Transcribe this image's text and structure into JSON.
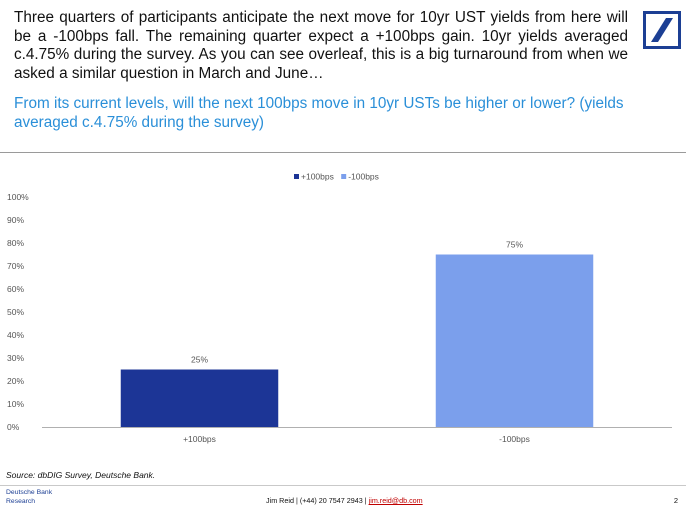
{
  "header": {
    "intro": "Three quarters of participants anticipate the next move for 10yr UST yields from here will be a -100bps fall. The remaining quarter expect a +100bps gain. 10yr yields averaged c.4.75% during the survey. As you can see overleaf, this is a big turnaround from when we asked a similar question in March and June…",
    "question": "From its current levels, will the next 100bps move in 10yr USTs be higher or lower? (yields averaged c.4.75% during the survey)"
  },
  "chart_data": {
    "type": "bar",
    "categories": [
      "+100bps",
      "-100bps"
    ],
    "values": [
      25,
      75
    ],
    "data_labels": [
      "25%",
      "75%"
    ],
    "colors": [
      "#1c3596",
      "#7b9fec"
    ],
    "legend": {
      "position": "top-center",
      "entries": [
        {
          "label": "+100bps",
          "color": "#1c3596"
        },
        {
          "label": "-100bps",
          "color": "#7b9fec"
        }
      ]
    },
    "ylim": [
      0,
      100
    ],
    "yticks": [
      "0%",
      "10%",
      "20%",
      "30%",
      "40%",
      "50%",
      "60%",
      "70%",
      "80%",
      "90%",
      "100%"
    ],
    "title": "",
    "xlabel": "",
    "ylabel": "",
    "grid": false
  },
  "source": "Source: dbDIG Survey, Deutsche Bank.",
  "footer": {
    "brand_line1": "Deutsche Bank",
    "brand_line2": "Research",
    "contact_prefix": "Jim Reid | (+44) 20 7547 2943 | ",
    "contact_email": "jim.reid@db.com",
    "page_number": "2"
  },
  "icons": {
    "logo": "deutsche-bank-slash-logo"
  },
  "colors": {
    "brand_blue": "#1c3f94",
    "question_blue": "#2a8fd8"
  }
}
